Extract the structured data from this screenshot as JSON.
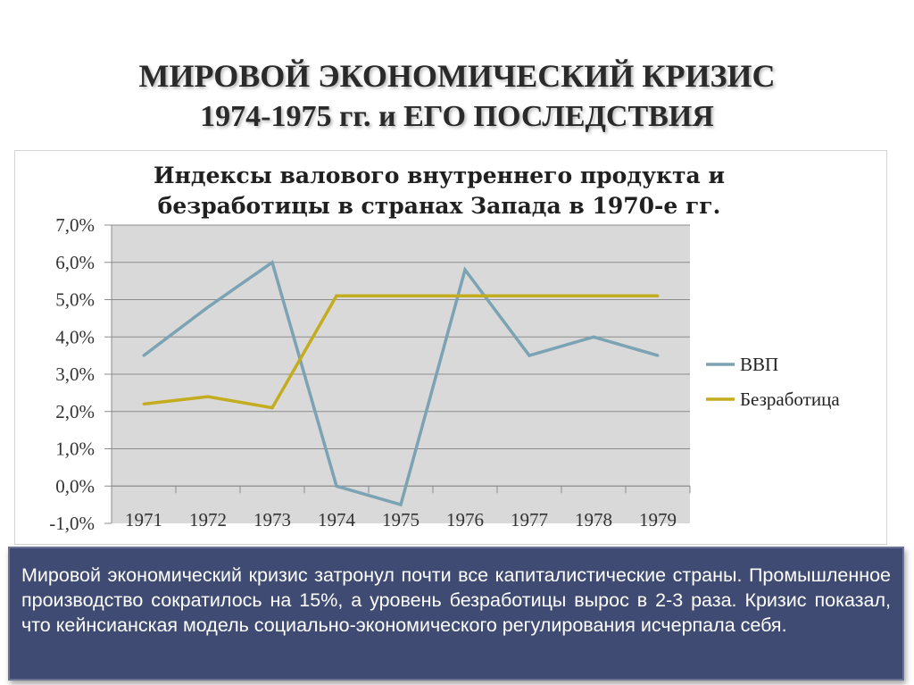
{
  "slide": {
    "title_line1": "МИРОВОЙ ЭКОНОМИЧЕСКИЙ КРИЗИС",
    "title_line2": "1974-1975 гг. и ЕГО ПОСЛЕДСТВИЯ"
  },
  "chart_data": {
    "type": "line",
    "title_line1": "Индексы валового внутреннего продукта и",
    "title_line2": "безработицы в странах Запада в 1970-е гг.",
    "categories": [
      "1971",
      "1972",
      "1973",
      "1974",
      "1975",
      "1976",
      "1977",
      "1978",
      "1979"
    ],
    "series": [
      {
        "name": "ВВП",
        "color": "#7ba3b3",
        "values": [
          3.5,
          4.8,
          6.0,
          0.0,
          -0.5,
          5.8,
          3.5,
          4.0,
          3.5
        ]
      },
      {
        "name": "Безработица",
        "color": "#c4ac1f",
        "values": [
          2.2,
          2.4,
          2.1,
          5.1,
          5.1,
          5.1,
          5.1,
          5.1,
          5.1
        ]
      }
    ],
    "ylim": [
      -1,
      7
    ],
    "yticks": [
      "7,0%",
      "6,0%",
      "5,0%",
      "4,0%",
      "3,0%",
      "2,0%",
      "1,0%",
      "0,0%",
      "-1,0%"
    ],
    "grid": true,
    "plot_background": "#d9d9d9",
    "legend": "right"
  },
  "caption": {
    "text": "Мировой экономический кризис затронул почти все капиталистические страны. Промышленное производство сократилось на 15%, а уровень безработицы вырос в 2-3 раза. Кризис показал, что кейнсианская модель социально-экономического регулирования исчерпала себя."
  }
}
